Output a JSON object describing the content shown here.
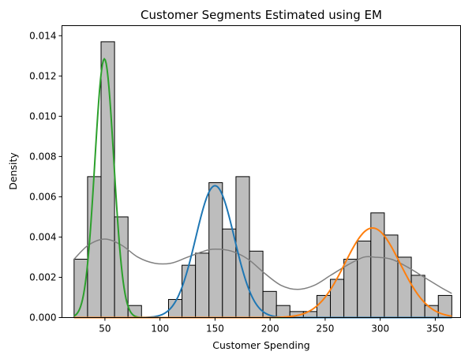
{
  "chart_data": {
    "type": "bar",
    "title": "Customer Segments Estimated using EM",
    "xlabel": "Customer Spending",
    "ylabel": "Density",
    "xlim": [
      11,
      373
    ],
    "ylim": [
      0,
      0.0145
    ],
    "xticks": [
      50,
      100,
      150,
      200,
      250,
      300,
      350
    ],
    "xtick_labels": [
      "50",
      "100",
      "150",
      "200",
      "250",
      "300",
      "350"
    ],
    "yticks": [
      0.0,
      0.002,
      0.004,
      0.006,
      0.008,
      0.01,
      0.012,
      0.014
    ],
    "ytick_labels": [
      "0.000",
      "0.002",
      "0.004",
      "0.006",
      "0.008",
      "0.010",
      "0.012",
      "0.014"
    ],
    "grid": false,
    "histogram": {
      "bin_start": 22,
      "bin_width": 12.25,
      "values": [
        0.0029,
        0.007,
        0.0137,
        0.005,
        0.0006,
        0.0,
        0.0,
        0.0009,
        0.0026,
        0.0032,
        0.0067,
        0.0044,
        0.007,
        0.0033,
        0.0013,
        0.0006,
        0.0003,
        0.0003,
        0.0011,
        0.0019,
        0.0029,
        0.0038,
        0.0052,
        0.0041,
        0.003,
        0.0021,
        0.0006,
        0.0011
      ],
      "fill": "#bdbdbd",
      "edge": "#000000"
    },
    "series": [
      {
        "type": "kde",
        "color": "#808080",
        "x": [
          22,
          35,
          50,
          65,
          80,
          95,
          110,
          125,
          140,
          150,
          165,
          180,
          195,
          210,
          225,
          240,
          255,
          270,
          285,
          295,
          310,
          325,
          340,
          355,
          365
        ],
        "y": [
          0.0029,
          0.0036,
          0.0039,
          0.0036,
          0.003,
          0.0027,
          0.0027,
          0.003,
          0.0033,
          0.0034,
          0.0033,
          0.0029,
          0.0022,
          0.0016,
          0.0014,
          0.0016,
          0.0021,
          0.0026,
          0.003,
          0.003,
          0.0029,
          0.0025,
          0.002,
          0.0015,
          0.0012
        ]
      },
      {
        "type": "gaussian",
        "color": "#2ca02c",
        "mean": 49.5,
        "sd": 8.6,
        "peak": 0.01285,
        "range": [
          22,
          365
        ]
      },
      {
        "type": "gaussian",
        "color": "#1f77b4",
        "mean": 150,
        "sd": 17.5,
        "peak": 0.00655,
        "range": [
          22,
          365
        ]
      },
      {
        "type": "gaussian",
        "color": "#ff7f0e",
        "mean": 293,
        "sd": 25,
        "peak": 0.00445,
        "range": [
          22,
          365
        ]
      }
    ]
  }
}
